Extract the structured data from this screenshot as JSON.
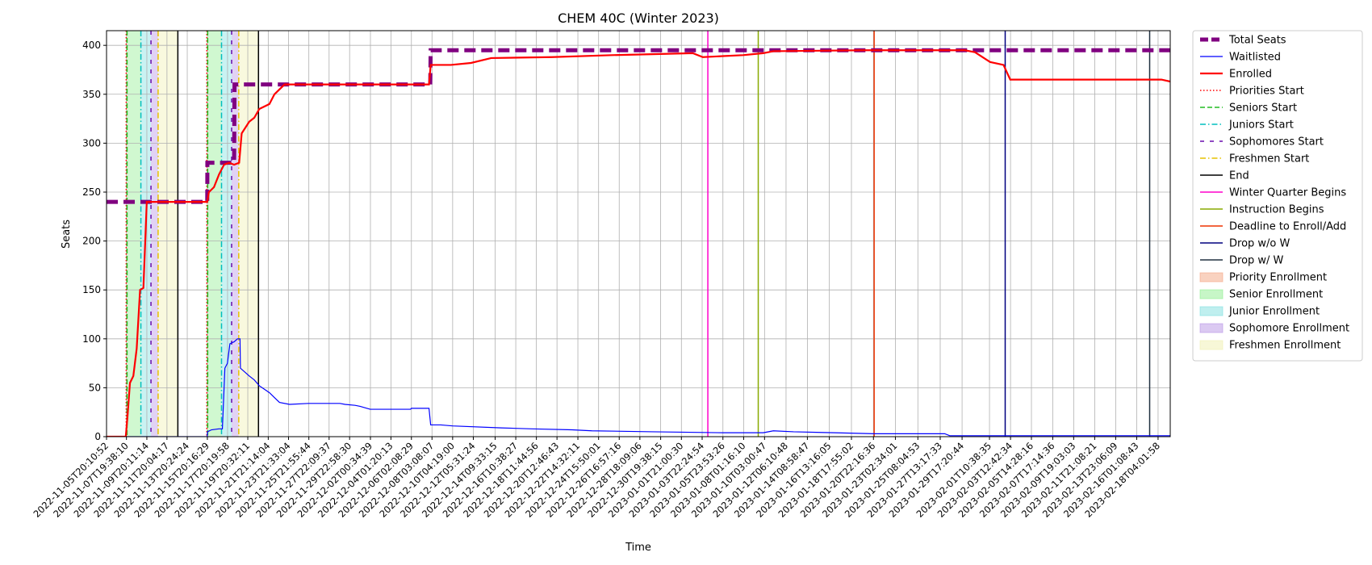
{
  "chart_data": {
    "type": "line",
    "title": "CHEM 40C (Winter 2023)",
    "xlabel": "Time",
    "ylabel": "Seats",
    "ylim": [
      0,
      415
    ],
    "yticks": [
      0,
      50,
      100,
      150,
      200,
      250,
      300,
      350,
      400
    ],
    "x_start": "2022-11-05T20:10:52",
    "x_end": "2023-02-19T09:00:00",
    "grid": true,
    "legend_position": "outside-right",
    "xtick_labels": [
      "2022-11-05T20:10:52",
      "2022-11-07T19:38:10",
      "2022-11-09T20:11:14",
      "2022-11-11T20:04:17",
      "2022-11-13T20:24:24",
      "2022-11-15T20:16:29",
      "2022-11-17T20:19:58",
      "2022-11-19T20:32:11",
      "2022-11-21T21:14:04",
      "2022-11-23T21:33:04",
      "2022-11-25T21:55:44",
      "2022-11-27T22:09:37",
      "2022-11-29T22:58:30",
      "2022-12-02T00:34:39",
      "2022-12-04T01:20:13",
      "2022-12-06T02:08:29",
      "2022-12-08T03:08:07",
      "2022-12-10T04:19:00",
      "2022-12-12T05:31:24",
      "2022-12-14T09:33:15",
      "2022-12-16T10:38:27",
      "2022-12-18T11:44:56",
      "2022-12-20T12:46:43",
      "2022-12-22T14:32:11",
      "2022-12-24T15:50:01",
      "2022-12-26T16:57:16",
      "2022-12-28T18:09:06",
      "2022-12-30T19:38:15",
      "2023-01-01T21:00:30",
      "2023-01-03T22:24:54",
      "2023-01-05T23:53:26",
      "2023-01-08T01:16:10",
      "2023-01-10T03:00:47",
      "2023-01-12T06:10:48",
      "2023-01-14T08:58:47",
      "2023-01-16T13:16:05",
      "2023-01-18T17:55:02",
      "2023-01-20T22:16:36",
      "2023-01-23T02:34:01",
      "2023-01-25T08:04:53",
      "2023-01-27T13:17:33",
      "2023-01-29T17:20:44",
      "2023-02-01T10:38:35",
      "2023-02-03T12:42:34",
      "2023-02-05T14:28:16",
      "2023-02-07T17:14:36",
      "2023-02-09T19:03:03",
      "2023-02-11T21:08:21",
      "2023-02-13T23:06:09",
      "2023-02-16T01:08:43",
      "2023-02-18T04:01:58"
    ],
    "series": [
      {
        "name": "Total Seats",
        "color": "#800080",
        "style": "dashed",
        "points": [
          [
            "2022-11-05T20:10:52",
            240
          ],
          [
            "2022-11-15T20:00:00",
            240
          ],
          [
            "2022-11-15T20:16:29",
            280
          ],
          [
            "2022-11-18T12:00:00",
            280
          ],
          [
            "2022-11-18T13:00:00",
            360
          ],
          [
            "2022-12-07T23:00:00",
            360
          ],
          [
            "2022-12-08T00:00:00",
            395
          ],
          [
            "2023-02-19T09:00:00",
            395
          ]
        ]
      },
      {
        "name": "Waitlisted",
        "color": "#0000ff",
        "style": "solid",
        "points": [
          [
            "2022-11-05T20:10:52",
            0
          ],
          [
            "2022-11-15T20:00:00",
            0
          ],
          [
            "2022-11-15T20:30:00",
            5
          ],
          [
            "2022-11-16T06:00:00",
            7
          ],
          [
            "2022-11-17T00:00:00",
            8
          ],
          [
            "2022-11-17T08:00:00",
            8
          ],
          [
            "2022-11-17T14:00:00",
            70
          ],
          [
            "2022-11-17T20:00:00",
            75
          ],
          [
            "2022-11-18T02:00:00",
            95
          ],
          [
            "2022-11-18T12:00:00",
            97
          ],
          [
            "2022-11-18T20:00:00",
            100
          ],
          [
            "2022-11-19T02:00:00",
            100
          ],
          [
            "2022-11-19T03:00:00",
            70
          ],
          [
            "2022-11-20T00:00:00",
            62
          ],
          [
            "2022-11-20T12:00:00",
            58
          ],
          [
            "2022-11-21T00:00:00",
            52
          ],
          [
            "2022-11-22T00:00:00",
            45
          ],
          [
            "2022-11-22T12:00:00",
            40
          ],
          [
            "2022-11-23T00:00:00",
            35
          ],
          [
            "2022-11-24T00:00:00",
            33
          ],
          [
            "2022-11-25T21:55:44",
            34
          ],
          [
            "2022-11-29T00:00:00",
            34
          ],
          [
            "2022-11-29T12:00:00",
            33
          ],
          [
            "2022-11-30T12:00:00",
            32
          ],
          [
            "2022-12-01T00:00:00",
            31
          ],
          [
            "2022-12-02T00:00:00",
            28
          ],
          [
            "2022-12-06T00:00:00",
            28
          ],
          [
            "2022-12-06T02:08:29",
            29
          ],
          [
            "2022-12-07T20:00:00",
            29
          ],
          [
            "2022-12-08T00:00:00",
            12
          ],
          [
            "2022-12-09T00:00:00",
            12
          ],
          [
            "2022-12-10T04:19:00",
            11
          ],
          [
            "2022-12-15T00:00:00",
            9
          ],
          [
            "2022-12-18T00:00:00",
            8
          ],
          [
            "2022-12-22T00:00:00",
            7
          ],
          [
            "2022-12-24T00:00:00",
            6
          ],
          [
            "2022-12-30T00:00:00",
            5
          ],
          [
            "2023-01-06T00:00:00",
            4
          ],
          [
            "2023-01-10T00:00:00",
            4
          ],
          [
            "2023-01-11T00:00:00",
            6
          ],
          [
            "2023-01-13T00:00:00",
            5
          ],
          [
            "2023-01-17T00:00:00",
            4
          ],
          [
            "2023-01-21T00:00:00",
            3
          ],
          [
            "2023-01-28T00:00:00",
            3
          ],
          [
            "2023-01-28T12:00:00",
            1
          ],
          [
            "2023-02-19T09:00:00",
            1
          ]
        ]
      },
      {
        "name": "Enrolled",
        "color": "#ff0000",
        "style": "solid",
        "points": [
          [
            "2022-11-05T20:10:52",
            0
          ],
          [
            "2022-11-07T18:00:00",
            0
          ],
          [
            "2022-11-07T22:00:00",
            20
          ],
          [
            "2022-11-08T04:00:00",
            55
          ],
          [
            "2022-11-08T12:00:00",
            62
          ],
          [
            "2022-11-08T20:00:00",
            90
          ],
          [
            "2022-11-09T04:00:00",
            150
          ],
          [
            "2022-11-09T12:00:00",
            152
          ],
          [
            "2022-11-09T20:00:00",
            240
          ],
          [
            "2022-11-15T20:00:00",
            240
          ],
          [
            "2022-11-16T00:00:00",
            250
          ],
          [
            "2022-11-16T12:00:00",
            255
          ],
          [
            "2022-11-17T00:00:00",
            268
          ],
          [
            "2022-11-17T12:00:00",
            278
          ],
          [
            "2022-11-18T00:00:00",
            280
          ],
          [
            "2022-11-18T12:00:00",
            278
          ],
          [
            "2022-11-19T00:00:00",
            280
          ],
          [
            "2022-11-19T06:00:00",
            310
          ],
          [
            "2022-11-20T00:00:00",
            322
          ],
          [
            "2022-11-20T12:00:00",
            326
          ],
          [
            "2022-11-21T00:00:00",
            335
          ],
          [
            "2022-11-22T00:00:00",
            340
          ],
          [
            "2022-11-22T12:00:00",
            350
          ],
          [
            "2022-11-23T12:00:00",
            360
          ],
          [
            "2022-12-07T20:00:00",
            360
          ],
          [
            "2022-12-08T00:00:00",
            380
          ],
          [
            "2022-12-10T00:00:00",
            380
          ],
          [
            "2022-12-12T00:00:00",
            382
          ],
          [
            "2022-12-14T00:00:00",
            387
          ],
          [
            "2022-12-20T00:00:00",
            388
          ],
          [
            "2022-12-26T00:00:00",
            390
          ],
          [
            "2022-12-30T00:00:00",
            391
          ],
          [
            "2023-01-03T00:00:00",
            392
          ],
          [
            "2023-01-04T00:00:00",
            388
          ],
          [
            "2023-01-06T00:00:00",
            389
          ],
          [
            "2023-01-08T00:00:00",
            390
          ],
          [
            "2023-01-10T00:00:00",
            392
          ],
          [
            "2023-01-11T00:00:00",
            394
          ],
          [
            "2023-01-20T00:00:00",
            395
          ],
          [
            "2023-01-30T00:00:00",
            395
          ],
          [
            "2023-01-31T00:00:00",
            393
          ],
          [
            "2023-02-01T12:00:00",
            383
          ],
          [
            "2023-02-02T20:00:00",
            380
          ],
          [
            "2023-02-03T12:00:00",
            365
          ],
          [
            "2023-02-18T12:00:00",
            365
          ],
          [
            "2023-02-19T09:00:00",
            363
          ]
        ]
      }
    ],
    "shaded_regions": [
      {
        "name": "Priority Enrollment",
        "color": "#f4a582",
        "spans": [
          [
            "2022-11-07T19:00:00",
            "2022-11-07T21:00:00"
          ],
          [
            "2022-11-15T19:00:00",
            "2022-11-15T21:00:00"
          ]
        ]
      },
      {
        "name": "Senior Enrollment",
        "color": "#90ee90",
        "spans": [
          [
            "2022-11-07T21:00:00",
            "2022-11-09T06:00:00"
          ],
          [
            "2022-11-15T21:00:00",
            "2022-11-17T06:00:00"
          ]
        ]
      },
      {
        "name": "Junior Enrollment",
        "color": "#7fdfdf",
        "spans": [
          [
            "2022-11-09T06:00:00",
            "2022-11-10T06:00:00"
          ],
          [
            "2022-11-17T06:00:00",
            "2022-11-18T06:00:00"
          ]
        ]
      },
      {
        "name": "Sophomore Enrollment",
        "color": "#b794e6",
        "spans": [
          [
            "2022-11-10T06:00:00",
            "2022-11-10T23:00:00"
          ],
          [
            "2022-11-18T06:00:00",
            "2022-11-18T23:00:00"
          ]
        ]
      },
      {
        "name": "Freshmen Enrollment",
        "color": "#f0f0b0",
        "spans": [
          [
            "2022-11-10T23:00:00",
            "2022-11-12T22:00:00"
          ],
          [
            "2022-11-18T23:00:00",
            "2022-11-20T22:00:00"
          ]
        ]
      }
    ],
    "vlines": [
      {
        "name": "Priorities Start",
        "color": "#ff0000",
        "style": "dotted",
        "times": [
          "2022-11-07T19:00:00",
          "2022-11-15T19:00:00"
        ]
      },
      {
        "name": "Seniors Start",
        "color": "#22bb22",
        "style": "dashed",
        "times": [
          "2022-11-07T21:00:00",
          "2022-11-15T21:00:00"
        ]
      },
      {
        "name": "Juniors Start",
        "color": "#00bfbf",
        "style": "dashdot",
        "times": [
          "2022-11-09T06:00:00",
          "2022-11-17T06:00:00"
        ]
      },
      {
        "name": "Sophomores Start",
        "color": "#6a0dad",
        "style": "loosedash",
        "times": [
          "2022-11-10T06:00:00",
          "2022-11-18T06:00:00"
        ]
      },
      {
        "name": "Freshmen Start",
        "color": "#e6c200",
        "style": "dashdot",
        "times": [
          "2022-11-10T23:00:00",
          "2022-11-18T23:00:00"
        ]
      },
      {
        "name": "End",
        "color": "#000000",
        "style": "solid",
        "times": [
          "2022-11-12T22:00:00",
          "2022-11-20T22:00:00"
        ]
      },
      {
        "name": "Winter Quarter Begins",
        "color": "#ff00cc",
        "style": "solid",
        "times": [
          "2023-01-04T12:00:00"
        ]
      },
      {
        "name": "Instruction Begins",
        "color": "#88aa00",
        "style": "solid",
        "times": [
          "2023-01-09T12:00:00"
        ]
      },
      {
        "name": "Deadline to Enroll/Add",
        "color": "#ee3300",
        "style": "solid",
        "times": [
          "2023-01-21T00:00:00"
        ]
      },
      {
        "name": "Drop w/o W",
        "color": "#00007f",
        "style": "solid",
        "times": [
          "2023-02-03T00:00:00"
        ]
      },
      {
        "name": "Drop w/ W",
        "color": "#203040",
        "style": "solid",
        "times": [
          "2023-02-17T08:00:00"
        ]
      }
    ],
    "legend": [
      {
        "label": "Total Seats",
        "kind": "line",
        "color": "#800080",
        "style": "dashed",
        "width": 5
      },
      {
        "label": "Waitlisted",
        "kind": "line",
        "color": "#0000ff",
        "style": "solid",
        "width": 1.2
      },
      {
        "label": "Enrolled",
        "kind": "line",
        "color": "#ff0000",
        "style": "solid",
        "width": 2.2
      },
      {
        "label": "Priorities Start",
        "kind": "line",
        "color": "#ff0000",
        "style": "dotted",
        "width": 1.4
      },
      {
        "label": "Seniors Start",
        "kind": "line",
        "color": "#22bb22",
        "style": "dashed",
        "width": 1.4
      },
      {
        "label": "Juniors Start",
        "kind": "line",
        "color": "#00bfbf",
        "style": "dashdot",
        "width": 1.4
      },
      {
        "label": "Sophomores Start",
        "kind": "line",
        "color": "#6a0dad",
        "style": "loosedash",
        "width": 1.4
      },
      {
        "label": "Freshmen Start",
        "kind": "line",
        "color": "#e6c200",
        "style": "dashdot",
        "width": 1.4
      },
      {
        "label": "End",
        "kind": "line",
        "color": "#000000",
        "style": "solid",
        "width": 1.4
      },
      {
        "label": "Winter Quarter Begins",
        "kind": "line",
        "color": "#ff00cc",
        "style": "solid",
        "width": 1.4
      },
      {
        "label": "Instruction Begins",
        "kind": "line",
        "color": "#88aa00",
        "style": "solid",
        "width": 1.4
      },
      {
        "label": "Deadline to Enroll/Add",
        "kind": "line",
        "color": "#ee3300",
        "style": "solid",
        "width": 1.4
      },
      {
        "label": "Drop w/o W",
        "kind": "line",
        "color": "#00007f",
        "style": "solid",
        "width": 1.4
      },
      {
        "label": "Drop w/ W",
        "kind": "line",
        "color": "#203040",
        "style": "solid",
        "width": 1.4
      },
      {
        "label": "Priority Enrollment",
        "kind": "patch",
        "color": "#f4a582"
      },
      {
        "label": "Senior Enrollment",
        "kind": "patch",
        "color": "#90ee90"
      },
      {
        "label": "Junior Enrollment",
        "kind": "patch",
        "color": "#7fdfdf"
      },
      {
        "label": "Sophomore Enrollment",
        "kind": "patch",
        "color": "#b794e6"
      },
      {
        "label": "Freshmen Enrollment",
        "kind": "patch",
        "color": "#f0f0b0"
      }
    ]
  }
}
